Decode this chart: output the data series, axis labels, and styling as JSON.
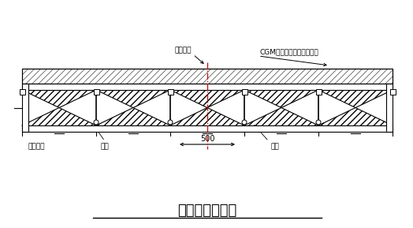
{
  "title": "预制颉梁示意图",
  "bg_color": "#ffffff",
  "line_color": "#000000",
  "center_line_color": "#cc0000",
  "label_liang_zhong": "梁跨中线",
  "label_cgm": "CGM高强无收缩灰浆料灰实",
  "label_duila": "对拉螺栓",
  "label_jiagang": "角颉",
  "label_jiagang2": "角颉",
  "label_500": "500",
  "fig_width": 5.24,
  "fig_height": 2.89,
  "dpi": 100
}
